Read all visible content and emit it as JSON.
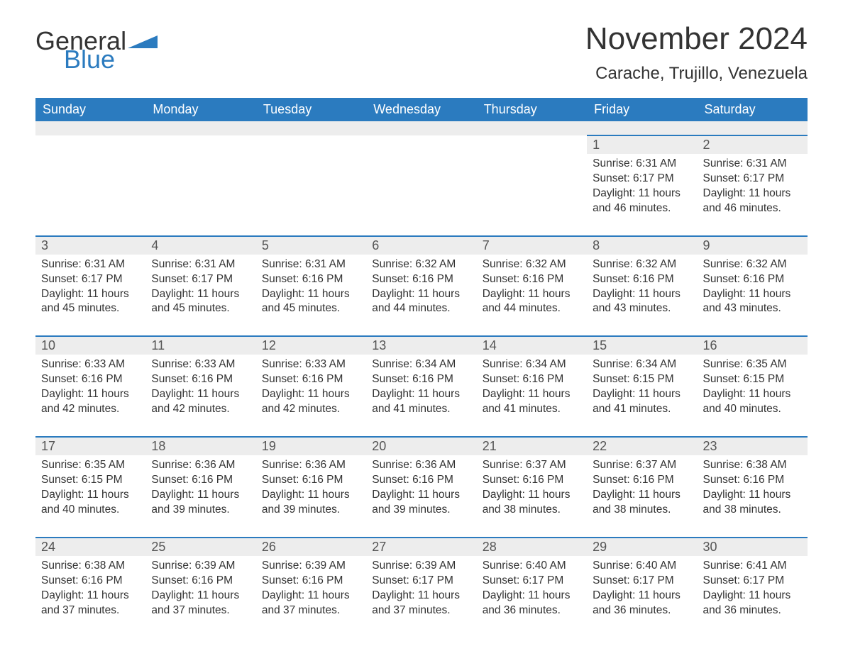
{
  "brand": {
    "text1": "General",
    "text2": "Blue",
    "color_text": "#333333",
    "color_blue": "#2b7bbf"
  },
  "title": "November 2024",
  "location": "Carache, Trujillo, Venezuela",
  "colors": {
    "header_bg": "#2b7bbf",
    "header_text": "#ffffff",
    "daynum_bg": "#ededed",
    "daynum_border": "#2b7bbf",
    "body_text": "#333333",
    "page_bg": "#ffffff"
  },
  "typography": {
    "title_fontsize": 44,
    "location_fontsize": 24,
    "dow_fontsize": 18,
    "daynum_fontsize": 18,
    "data_fontsize": 15.5
  },
  "layout": {
    "columns": 7,
    "start_day_index": 5
  },
  "days_of_week": [
    "Sunday",
    "Monday",
    "Tuesday",
    "Wednesday",
    "Thursday",
    "Friday",
    "Saturday"
  ],
  "days": [
    {
      "n": 1,
      "sunrise": "6:31 AM",
      "sunset": "6:17 PM",
      "daylight": "11 hours and 46 minutes."
    },
    {
      "n": 2,
      "sunrise": "6:31 AM",
      "sunset": "6:17 PM",
      "daylight": "11 hours and 46 minutes."
    },
    {
      "n": 3,
      "sunrise": "6:31 AM",
      "sunset": "6:17 PM",
      "daylight": "11 hours and 45 minutes."
    },
    {
      "n": 4,
      "sunrise": "6:31 AM",
      "sunset": "6:17 PM",
      "daylight": "11 hours and 45 minutes."
    },
    {
      "n": 5,
      "sunrise": "6:31 AM",
      "sunset": "6:16 PM",
      "daylight": "11 hours and 45 minutes."
    },
    {
      "n": 6,
      "sunrise": "6:32 AM",
      "sunset": "6:16 PM",
      "daylight": "11 hours and 44 minutes."
    },
    {
      "n": 7,
      "sunrise": "6:32 AM",
      "sunset": "6:16 PM",
      "daylight": "11 hours and 44 minutes."
    },
    {
      "n": 8,
      "sunrise": "6:32 AM",
      "sunset": "6:16 PM",
      "daylight": "11 hours and 43 minutes."
    },
    {
      "n": 9,
      "sunrise": "6:32 AM",
      "sunset": "6:16 PM",
      "daylight": "11 hours and 43 minutes."
    },
    {
      "n": 10,
      "sunrise": "6:33 AM",
      "sunset": "6:16 PM",
      "daylight": "11 hours and 42 minutes."
    },
    {
      "n": 11,
      "sunrise": "6:33 AM",
      "sunset": "6:16 PM",
      "daylight": "11 hours and 42 minutes."
    },
    {
      "n": 12,
      "sunrise": "6:33 AM",
      "sunset": "6:16 PM",
      "daylight": "11 hours and 42 minutes."
    },
    {
      "n": 13,
      "sunrise": "6:34 AM",
      "sunset": "6:16 PM",
      "daylight": "11 hours and 41 minutes."
    },
    {
      "n": 14,
      "sunrise": "6:34 AM",
      "sunset": "6:16 PM",
      "daylight": "11 hours and 41 minutes."
    },
    {
      "n": 15,
      "sunrise": "6:34 AM",
      "sunset": "6:15 PM",
      "daylight": "11 hours and 41 minutes."
    },
    {
      "n": 16,
      "sunrise": "6:35 AM",
      "sunset": "6:15 PM",
      "daylight": "11 hours and 40 minutes."
    },
    {
      "n": 17,
      "sunrise": "6:35 AM",
      "sunset": "6:15 PM",
      "daylight": "11 hours and 40 minutes."
    },
    {
      "n": 18,
      "sunrise": "6:36 AM",
      "sunset": "6:16 PM",
      "daylight": "11 hours and 39 minutes."
    },
    {
      "n": 19,
      "sunrise": "6:36 AM",
      "sunset": "6:16 PM",
      "daylight": "11 hours and 39 minutes."
    },
    {
      "n": 20,
      "sunrise": "6:36 AM",
      "sunset": "6:16 PM",
      "daylight": "11 hours and 39 minutes."
    },
    {
      "n": 21,
      "sunrise": "6:37 AM",
      "sunset": "6:16 PM",
      "daylight": "11 hours and 38 minutes."
    },
    {
      "n": 22,
      "sunrise": "6:37 AM",
      "sunset": "6:16 PM",
      "daylight": "11 hours and 38 minutes."
    },
    {
      "n": 23,
      "sunrise": "6:38 AM",
      "sunset": "6:16 PM",
      "daylight": "11 hours and 38 minutes."
    },
    {
      "n": 24,
      "sunrise": "6:38 AM",
      "sunset": "6:16 PM",
      "daylight": "11 hours and 37 minutes."
    },
    {
      "n": 25,
      "sunrise": "6:39 AM",
      "sunset": "6:16 PM",
      "daylight": "11 hours and 37 minutes."
    },
    {
      "n": 26,
      "sunrise": "6:39 AM",
      "sunset": "6:16 PM",
      "daylight": "11 hours and 37 minutes."
    },
    {
      "n": 27,
      "sunrise": "6:39 AM",
      "sunset": "6:17 PM",
      "daylight": "11 hours and 37 minutes."
    },
    {
      "n": 28,
      "sunrise": "6:40 AM",
      "sunset": "6:17 PM",
      "daylight": "11 hours and 36 minutes."
    },
    {
      "n": 29,
      "sunrise": "6:40 AM",
      "sunset": "6:17 PM",
      "daylight": "11 hours and 36 minutes."
    },
    {
      "n": 30,
      "sunrise": "6:41 AM",
      "sunset": "6:17 PM",
      "daylight": "11 hours and 36 minutes."
    }
  ],
  "labels": {
    "sunrise": "Sunrise:",
    "sunset": "Sunset:",
    "daylight": "Daylight:"
  }
}
